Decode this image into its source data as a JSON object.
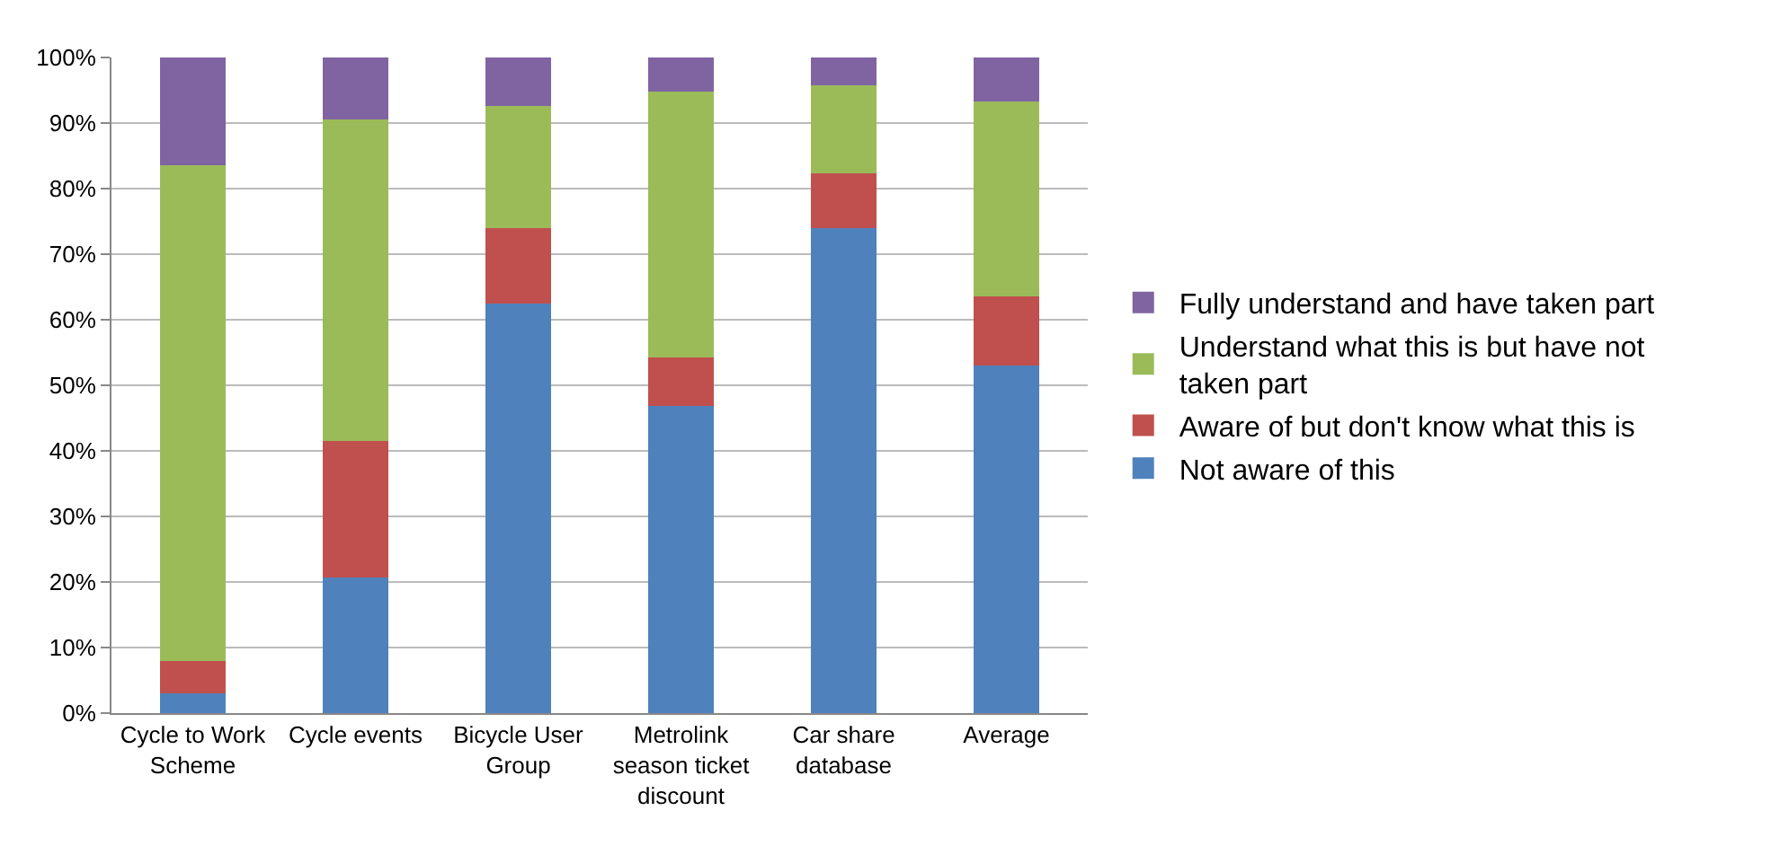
{
  "chart_data": {
    "type": "bar",
    "stacked": true,
    "categories": [
      "Cycle to Work Scheme",
      "Cycle events",
      "Bicycle User Group",
      "Metrolink season ticket discount",
      "Car share database",
      "Average"
    ],
    "series": [
      {
        "name": "Not aware of this",
        "color": "#4f81bd",
        "values": [
          3,
          20.7,
          62.5,
          46.8,
          74,
          53
        ]
      },
      {
        "name": "Aware of but don't know what this is",
        "color": "#c0504d",
        "values": [
          5,
          20.8,
          11.5,
          7.4,
          8.3,
          10.5
        ]
      },
      {
        "name": "Understand what this is but have not taken part",
        "color": "#9bbb59",
        "values": [
          75.5,
          49.1,
          18.6,
          40.6,
          13.5,
          29.8
        ]
      },
      {
        "name": "Fully understand and have taken part",
        "color": "#8064a2",
        "values": [
          16.5,
          9.4,
          7.4,
          5.2,
          4.2,
          6.7
        ]
      }
    ],
    "ylim": [
      0,
      100
    ],
    "yticks": [
      {
        "value": 0,
        "label": "0%"
      },
      {
        "value": 10,
        "label": "10%"
      },
      {
        "value": 20,
        "label": "20%"
      },
      {
        "value": 30,
        "label": "30%"
      },
      {
        "value": 40,
        "label": "40%"
      },
      {
        "value": 50,
        "label": "50%"
      },
      {
        "value": 60,
        "label": "60%"
      },
      {
        "value": 70,
        "label": "70%"
      },
      {
        "value": 80,
        "label": "80%"
      },
      {
        "value": 90,
        "label": "90%"
      },
      {
        "value": 100,
        "label": "100%"
      }
    ],
    "grid": "y",
    "legend": "right"
  }
}
